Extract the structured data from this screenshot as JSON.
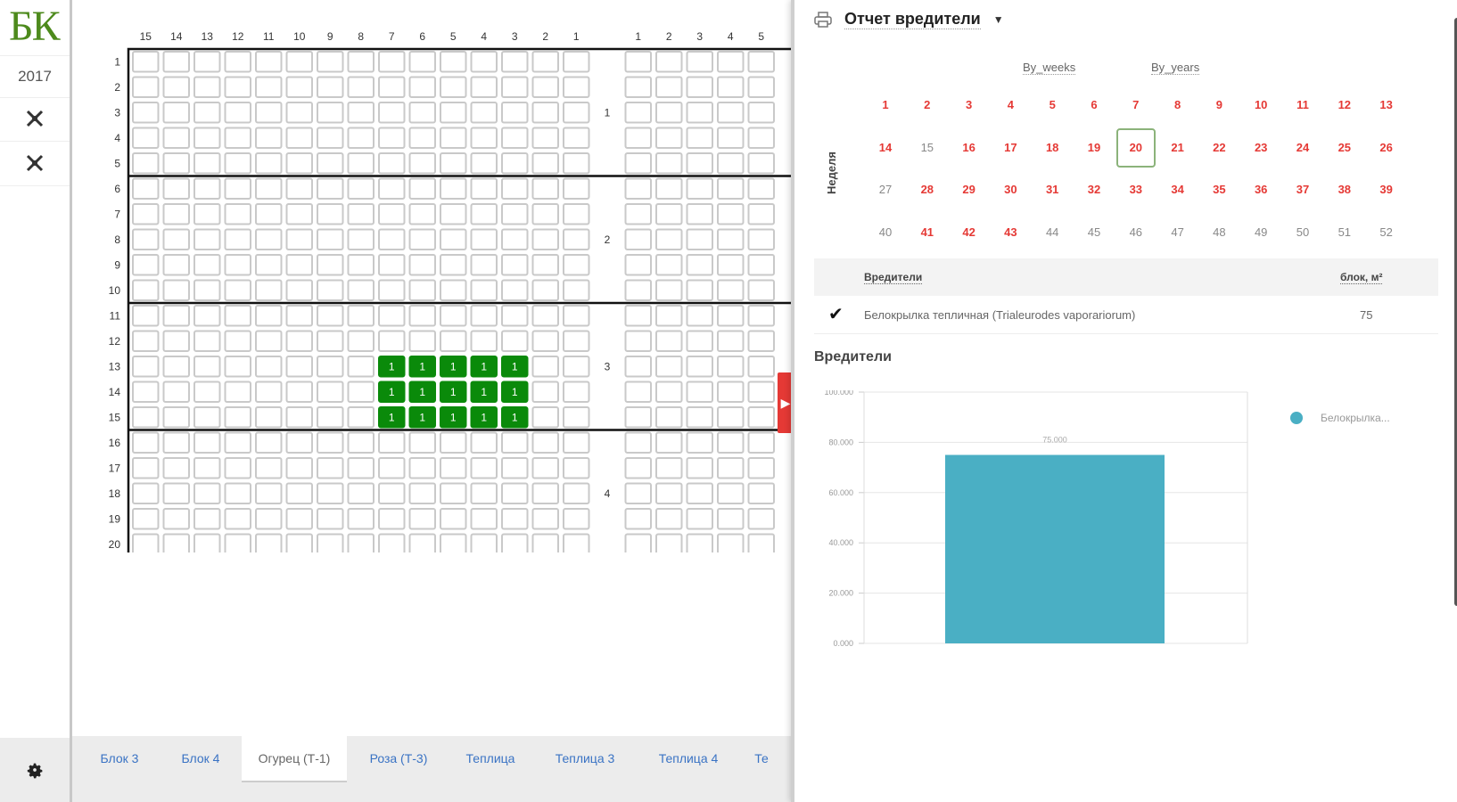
{
  "app": {
    "logo": "БК",
    "year": "2017"
  },
  "grid": {
    "left_cols": [
      "15",
      "14",
      "13",
      "12",
      "11",
      "10",
      "9",
      "8",
      "7",
      "6",
      "5",
      "4",
      "3",
      "2",
      "1"
    ],
    "right_cols": [
      "1",
      "2",
      "3",
      "4",
      "5"
    ],
    "rows": [
      "1",
      "2",
      "3",
      "4",
      "5",
      "6",
      "7",
      "8",
      "9",
      "10",
      "11",
      "12",
      "13",
      "14",
      "15",
      "16",
      "17",
      "18",
      "19",
      "20"
    ],
    "blocks": [
      "1",
      "2",
      "3",
      "4"
    ],
    "marked_cells": {
      "rows": [
        "13",
        "14",
        "15"
      ],
      "cols": [
        "7",
        "6",
        "5",
        "4",
        "3"
      ],
      "value": "1",
      "color": "#0a8a0a"
    }
  },
  "tabs": [
    {
      "label": "Блок 3"
    },
    {
      "label": "Блок 4"
    },
    {
      "label": "Огурец (Т-1)",
      "active": true
    },
    {
      "label": "Роза (Т-3)"
    },
    {
      "label": "Теплица"
    },
    {
      "label": "Теплица 3"
    },
    {
      "label": "Теплица 4"
    },
    {
      "label": "Те"
    }
  ],
  "panel": {
    "title": "Отчет вредители",
    "modes": [
      "By_weeks",
      "By_years"
    ],
    "week_axis_label": "Неделя",
    "selected_week": "20",
    "weeks": [
      {
        "n": "1",
        "s": "red"
      },
      {
        "n": "2",
        "s": "red"
      },
      {
        "n": "3",
        "s": "red"
      },
      {
        "n": "4",
        "s": "red"
      },
      {
        "n": "5",
        "s": "red"
      },
      {
        "n": "6",
        "s": "red"
      },
      {
        "n": "7",
        "s": "red"
      },
      {
        "n": "8",
        "s": "red"
      },
      {
        "n": "9",
        "s": "red"
      },
      {
        "n": "10",
        "s": "red"
      },
      {
        "n": "11",
        "s": "red"
      },
      {
        "n": "12",
        "s": "red"
      },
      {
        "n": "13",
        "s": "red"
      },
      {
        "n": "14",
        "s": "red"
      },
      {
        "n": "15",
        "s": "gray"
      },
      {
        "n": "16",
        "s": "red"
      },
      {
        "n": "17",
        "s": "red"
      },
      {
        "n": "18",
        "s": "red"
      },
      {
        "n": "19",
        "s": "red"
      },
      {
        "n": "20",
        "s": "red"
      },
      {
        "n": "21",
        "s": "red"
      },
      {
        "n": "22",
        "s": "red"
      },
      {
        "n": "23",
        "s": "red"
      },
      {
        "n": "24",
        "s": "red"
      },
      {
        "n": "25",
        "s": "red"
      },
      {
        "n": "26",
        "s": "red"
      },
      {
        "n": "27",
        "s": "gray"
      },
      {
        "n": "28",
        "s": "red"
      },
      {
        "n": "29",
        "s": "red"
      },
      {
        "n": "30",
        "s": "red"
      },
      {
        "n": "31",
        "s": "red"
      },
      {
        "n": "32",
        "s": "red"
      },
      {
        "n": "33",
        "s": "red"
      },
      {
        "n": "34",
        "s": "red"
      },
      {
        "n": "35",
        "s": "red"
      },
      {
        "n": "36",
        "s": "red"
      },
      {
        "n": "37",
        "s": "red"
      },
      {
        "n": "38",
        "s": "red"
      },
      {
        "n": "39",
        "s": "red"
      },
      {
        "n": "40",
        "s": "gray"
      },
      {
        "n": "41",
        "s": "red"
      },
      {
        "n": "42",
        "s": "red"
      },
      {
        "n": "43",
        "s": "red"
      },
      {
        "n": "44",
        "s": "gray"
      },
      {
        "n": "45",
        "s": "gray"
      },
      {
        "n": "46",
        "s": "gray"
      },
      {
        "n": "47",
        "s": "gray"
      },
      {
        "n": "48",
        "s": "gray"
      },
      {
        "n": "49",
        "s": "gray"
      },
      {
        "n": "50",
        "s": "gray"
      },
      {
        "n": "51",
        "s": "gray"
      },
      {
        "n": "52",
        "s": "gray"
      }
    ],
    "table": {
      "col_pest": "Вредители",
      "col_area": "блок, м²",
      "rows": [
        {
          "check": "✔",
          "pest": "Белокрылка тепличная (Trialeurodes vaporariorum)",
          "area": "75"
        }
      ]
    },
    "chart_title": "Вредители"
  },
  "chart_data": {
    "type": "bar",
    "title": "Вредители",
    "categories": [
      ""
    ],
    "series": [
      {
        "name": "Белокрылка...",
        "values": [
          75
        ]
      }
    ],
    "data_labels": [
      "75.000"
    ],
    "yticks": [
      "0.000",
      "20.000",
      "40.000",
      "60.000",
      "80.000",
      "100.000"
    ],
    "ylim": [
      0,
      100
    ],
    "color": "#4aafc4",
    "legend": "right"
  }
}
